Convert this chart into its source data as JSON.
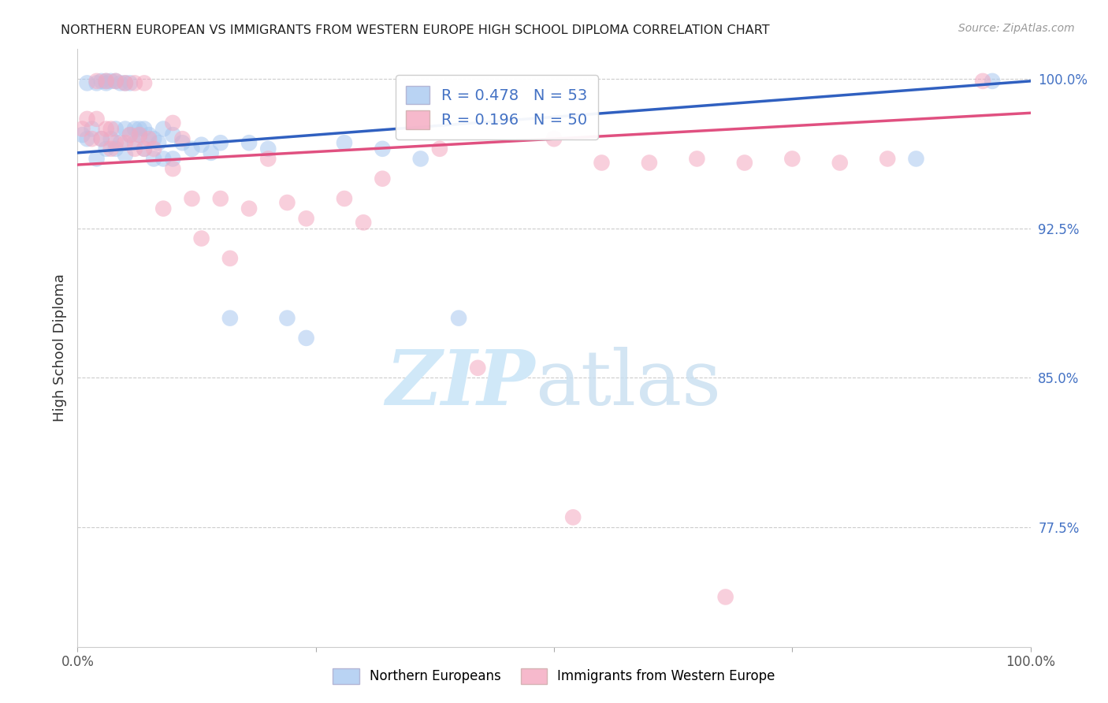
{
  "title": "NORTHERN EUROPEAN VS IMMIGRANTS FROM WESTERN EUROPE HIGH SCHOOL DIPLOMA CORRELATION CHART",
  "source": "Source: ZipAtlas.com",
  "ylabel": "High School Diploma",
  "right_yticks": [
    0.775,
    0.85,
    0.925,
    1.0
  ],
  "right_ytick_labels": [
    "77.5%",
    "85.0%",
    "92.5%",
    "100.0%"
  ],
  "xlim": [
    0.0,
    1.0
  ],
  "ylim": [
    0.715,
    1.015
  ],
  "blue_R": 0.478,
  "blue_N": 53,
  "pink_R": 0.196,
  "pink_N": 50,
  "blue_color": "#A8C8F0",
  "pink_color": "#F4A8C0",
  "blue_line_color": "#3060C0",
  "pink_line_color": "#E05080",
  "legend_label_blue": "Northern Europeans",
  "legend_label_pink": "Immigrants from Western Europe",
  "blue_scatter_x": [
    0.005,
    0.01,
    0.01,
    0.015,
    0.02,
    0.02,
    0.025,
    0.025,
    0.03,
    0.03,
    0.03,
    0.035,
    0.035,
    0.04,
    0.04,
    0.04,
    0.045,
    0.045,
    0.05,
    0.05,
    0.05,
    0.055,
    0.055,
    0.06,
    0.06,
    0.065,
    0.065,
    0.07,
    0.07,
    0.075,
    0.08,
    0.08,
    0.085,
    0.09,
    0.09,
    0.1,
    0.1,
    0.11,
    0.12,
    0.13,
    0.14,
    0.15,
    0.16,
    0.18,
    0.2,
    0.22,
    0.24,
    0.28,
    0.32,
    0.36,
    0.4,
    0.88,
    0.96
  ],
  "blue_scatter_y": [
    0.972,
    0.998,
    0.97,
    0.975,
    0.998,
    0.96,
    0.999,
    0.97,
    0.999,
    0.998,
    0.965,
    0.999,
    0.97,
    0.999,
    0.975,
    0.965,
    0.998,
    0.968,
    0.998,
    0.975,
    0.962,
    0.998,
    0.972,
    0.975,
    0.968,
    0.975,
    0.972,
    0.975,
    0.965,
    0.972,
    0.97,
    0.96,
    0.968,
    0.975,
    0.96,
    0.972,
    0.96,
    0.968,
    0.965,
    0.967,
    0.963,
    0.968,
    0.88,
    0.968,
    0.965,
    0.88,
    0.87,
    0.968,
    0.965,
    0.96,
    0.88,
    0.96,
    0.999
  ],
  "pink_scatter_x": [
    0.005,
    0.01,
    0.015,
    0.02,
    0.02,
    0.025,
    0.03,
    0.03,
    0.035,
    0.035,
    0.04,
    0.04,
    0.05,
    0.05,
    0.055,
    0.06,
    0.06,
    0.065,
    0.07,
    0.07,
    0.075,
    0.08,
    0.09,
    0.1,
    0.1,
    0.11,
    0.12,
    0.13,
    0.15,
    0.16,
    0.18,
    0.2,
    0.22,
    0.24,
    0.28,
    0.3,
    0.32,
    0.38,
    0.42,
    0.5,
    0.52,
    0.55,
    0.6,
    0.65,
    0.68,
    0.7,
    0.75,
    0.8,
    0.85,
    0.95
  ],
  "pink_scatter_y": [
    0.975,
    0.98,
    0.97,
    0.999,
    0.98,
    0.97,
    0.999,
    0.975,
    0.975,
    0.965,
    0.999,
    0.968,
    0.998,
    0.968,
    0.972,
    0.998,
    0.965,
    0.972,
    0.998,
    0.965,
    0.97,
    0.965,
    0.935,
    0.978,
    0.955,
    0.97,
    0.94,
    0.92,
    0.94,
    0.91,
    0.935,
    0.96,
    0.938,
    0.93,
    0.94,
    0.928,
    0.95,
    0.965,
    0.855,
    0.97,
    0.78,
    0.958,
    0.958,
    0.96,
    0.74,
    0.958,
    0.96,
    0.958,
    0.96,
    0.999
  ]
}
